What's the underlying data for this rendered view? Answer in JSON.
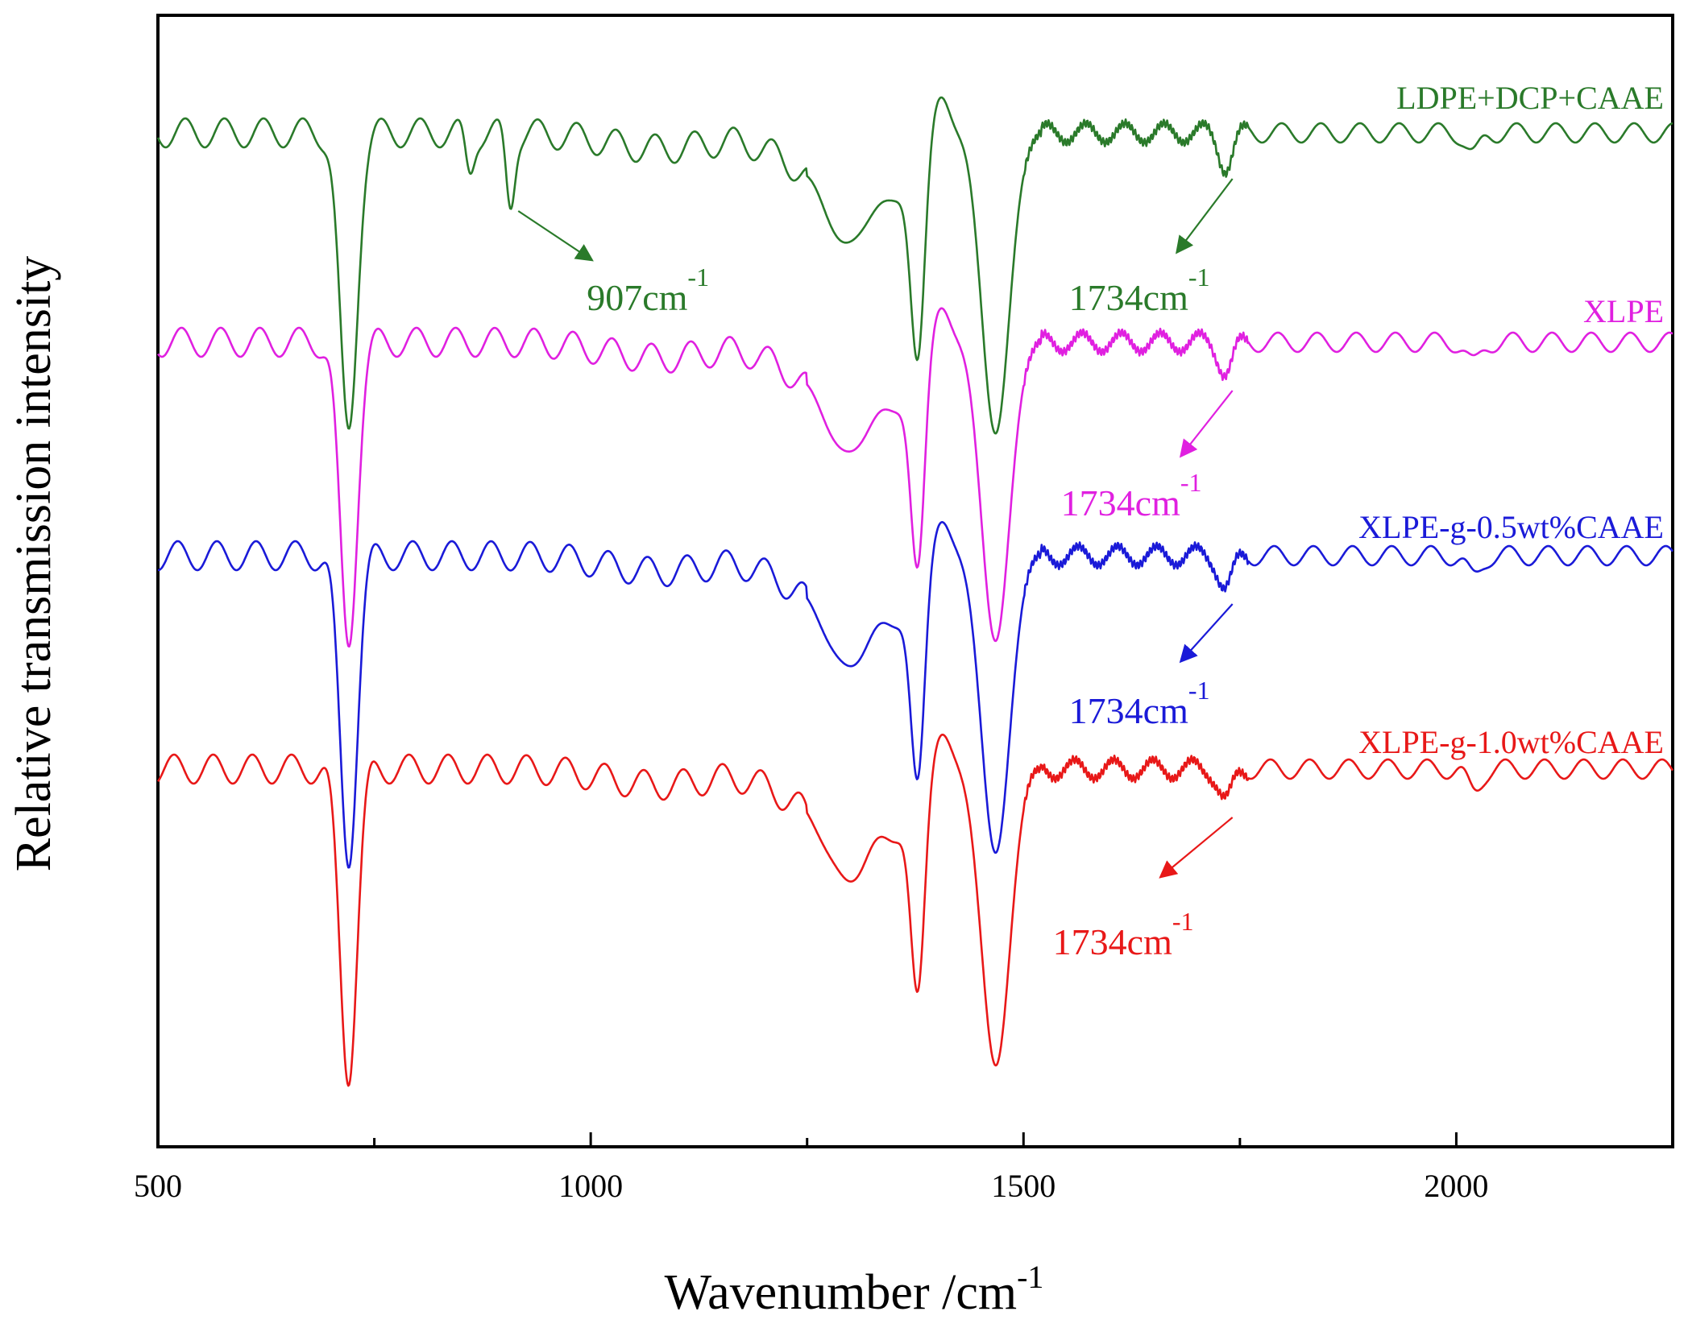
{
  "chart_data": {
    "type": "line",
    "title": "",
    "xlabel": "Wavenumber /cm",
    "xlabel_superscript": "-1",
    "ylabel": "Relative transmission intensity",
    "xlim": [
      500,
      2250
    ],
    "x_ticks": [
      500,
      1000,
      1500,
      2000
    ],
    "x_tick_labels": [
      "500",
      "1000",
      "1500",
      "2000"
    ],
    "x_minor_ticks": [
      750,
      1250,
      1750,
      2250
    ],
    "y_ticks_shown": false,
    "grid": false,
    "legend": "inline labels at right end of each trace",
    "series": [
      {
        "name": "LDPE+DCP+CAAE",
        "color": "#2a7a2a",
        "offset": 0,
        "peaks": [
          {
            "x": 720,
            "depth": 0.94,
            "label": ""
          },
          {
            "x": 860,
            "depth": 0.12,
            "label": ""
          },
          {
            "x": 907,
            "depth": 0.22,
            "label": "907cm-1"
          },
          {
            "x": 1300,
            "depth": 0.3,
            "label": ""
          },
          {
            "x": 1378,
            "depth": 0.62,
            "label": ""
          },
          {
            "x": 1468,
            "depth": 0.93,
            "label": ""
          },
          {
            "x": 1734,
            "depth": 0.1,
            "label": "1734cm-1"
          },
          {
            "x": 2020,
            "depth": 0.07,
            "label": ""
          }
        ]
      },
      {
        "name": "XLPE",
        "color": "#e020e0",
        "offset": 1,
        "peaks": [
          {
            "x": 720,
            "depth": 0.94,
            "label": ""
          },
          {
            "x": 1300,
            "depth": 0.3,
            "label": ""
          },
          {
            "x": 1378,
            "depth": 0.62,
            "label": ""
          },
          {
            "x": 1468,
            "depth": 0.93,
            "label": ""
          },
          {
            "x": 1734,
            "depth": 0.09,
            "label": "1734cm-1"
          },
          {
            "x": 2020,
            "depth": 0.07,
            "label": ""
          }
        ]
      },
      {
        "name": "XLPE-g-0.5wt%CAAE",
        "color": "#1a1ad8",
        "offset": 2,
        "peaks": [
          {
            "x": 720,
            "depth": 0.94,
            "label": ""
          },
          {
            "x": 1300,
            "depth": 0.3,
            "label": ""
          },
          {
            "x": 1378,
            "depth": 0.62,
            "label": ""
          },
          {
            "x": 1468,
            "depth": 0.93,
            "label": ""
          },
          {
            "x": 1734,
            "depth": 0.1,
            "label": "1734cm-1"
          },
          {
            "x": 2020,
            "depth": 0.07,
            "label": ""
          }
        ]
      },
      {
        "name": "XLPE-g-1.0wt%CAAE",
        "color": "#e81818",
        "offset": 3,
        "peaks": [
          {
            "x": 720,
            "depth": 0.94,
            "label": ""
          },
          {
            "x": 1300,
            "depth": 0.3,
            "label": ""
          },
          {
            "x": 1378,
            "depth": 0.62,
            "label": ""
          },
          {
            "x": 1468,
            "depth": 0.93,
            "label": ""
          },
          {
            "x": 1734,
            "depth": 0.1,
            "label": "1734cm-1"
          },
          {
            "x": 2020,
            "depth": 0.07,
            "label": ""
          }
        ]
      }
    ],
    "annotations": [
      {
        "series": "LDPE+DCP+CAAE",
        "x": 907,
        "text": "907cm",
        "sup": "-1"
      },
      {
        "series": "LDPE+DCP+CAAE",
        "x": 1734,
        "text": "1734cm",
        "sup": "-1"
      },
      {
        "series": "XLPE",
        "x": 1734,
        "text": "1734cm",
        "sup": "-1"
      },
      {
        "series": "XLPE-g-0.5wt%CAAE",
        "x": 1734,
        "text": "1734cm",
        "sup": "-1"
      },
      {
        "series": "XLPE-g-1.0wt%CAAE",
        "x": 1734,
        "text": "1734cm",
        "sup": "-1"
      }
    ]
  }
}
